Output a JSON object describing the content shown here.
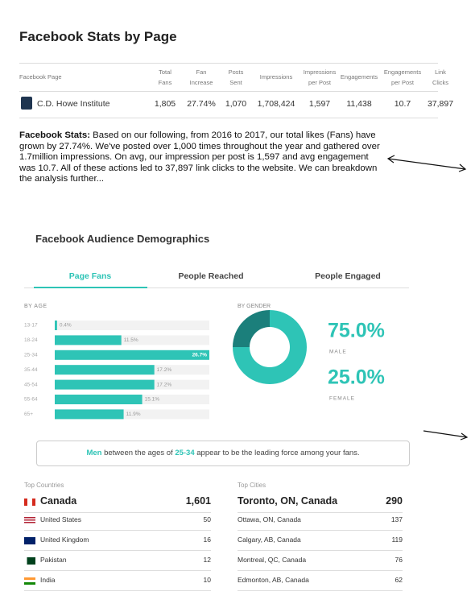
{
  "header": {
    "title": "Facebook Stats by Page"
  },
  "table": {
    "columns": [
      "Facebook Page",
      "Total Fans",
      "Fan Increase",
      "Posts Sent",
      "Impressions",
      "Impressions per Post",
      "Engagements",
      "Engagements per Post",
      "Link Clicks"
    ],
    "rows": [
      [
        "C.D. Howe Institute",
        "1,805",
        "27.74%",
        "1,070",
        "1,708,424",
        "1,597",
        "11,438",
        "10.7",
        "37,897"
      ]
    ]
  },
  "summary": {
    "lead": "Facebook Stats:",
    "text": "Based on our following, from 2016 to 2017, our total likes (Fans) have grown by 27.74%. We've posted over 1,000 times throughout the year and gathered over 1.7million impressions. On avg, our impression per post is 1,597 and avg engagement was 10.7. All of these actions led to 37,897 link clicks to the website. We can breakdown the analysis further..."
  },
  "demographics": {
    "title": "Facebook Audience Demographics",
    "tabs": [
      "Page Fans",
      "People Reached",
      "People Engaged"
    ]
  },
  "age_chart": {
    "type": "bar",
    "orientation": "horizontal",
    "title": "BY AGE",
    "categories": [
      "13-17",
      "18-24",
      "25-34",
      "35-44",
      "45-54",
      "55-64",
      "65+"
    ],
    "values": [
      0.4,
      11.5,
      26.7,
      17.2,
      17.2,
      15.1,
      11.9
    ],
    "value_labels": [
      "0.4%",
      "11.5%",
      "26.7%",
      "17.2%",
      "17.2%",
      "15.1%",
      "11.9%"
    ],
    "xlim": [
      0,
      26.7
    ],
    "color": "#2ec4b6"
  },
  "gender_chart": {
    "type": "donut",
    "title": "BY GENDER",
    "categories": [
      "MALE",
      "FEMALE"
    ],
    "values": [
      75.0,
      25.0
    ],
    "value_labels": [
      "75.0%",
      "25.0%"
    ],
    "colors": [
      "#2ec4b6",
      "#1b7f7b"
    ]
  },
  "insight": {
    "parts": [
      "Men",
      "between the ages of",
      "25-34",
      "appear to be the leading force among your fans."
    ]
  },
  "countries": {
    "title": "Top Countries",
    "rows": [
      [
        "Canada",
        "1,601"
      ],
      [
        "United States",
        "50"
      ],
      [
        "United Kingdom",
        "16"
      ],
      [
        "Pakistan",
        "12"
      ],
      [
        "India",
        "10"
      ]
    ]
  },
  "cities": {
    "title": "Top Cities",
    "rows": [
      [
        "Toronto, ON, Canada",
        "290"
      ],
      [
        "Ottawa, ON, Canada",
        "137"
      ],
      [
        "Calgary, AB, Canada",
        "119"
      ],
      [
        "Montreal, QC, Canada",
        "76"
      ],
      [
        "Edmonton, AB, Canada",
        "62"
      ]
    ]
  }
}
